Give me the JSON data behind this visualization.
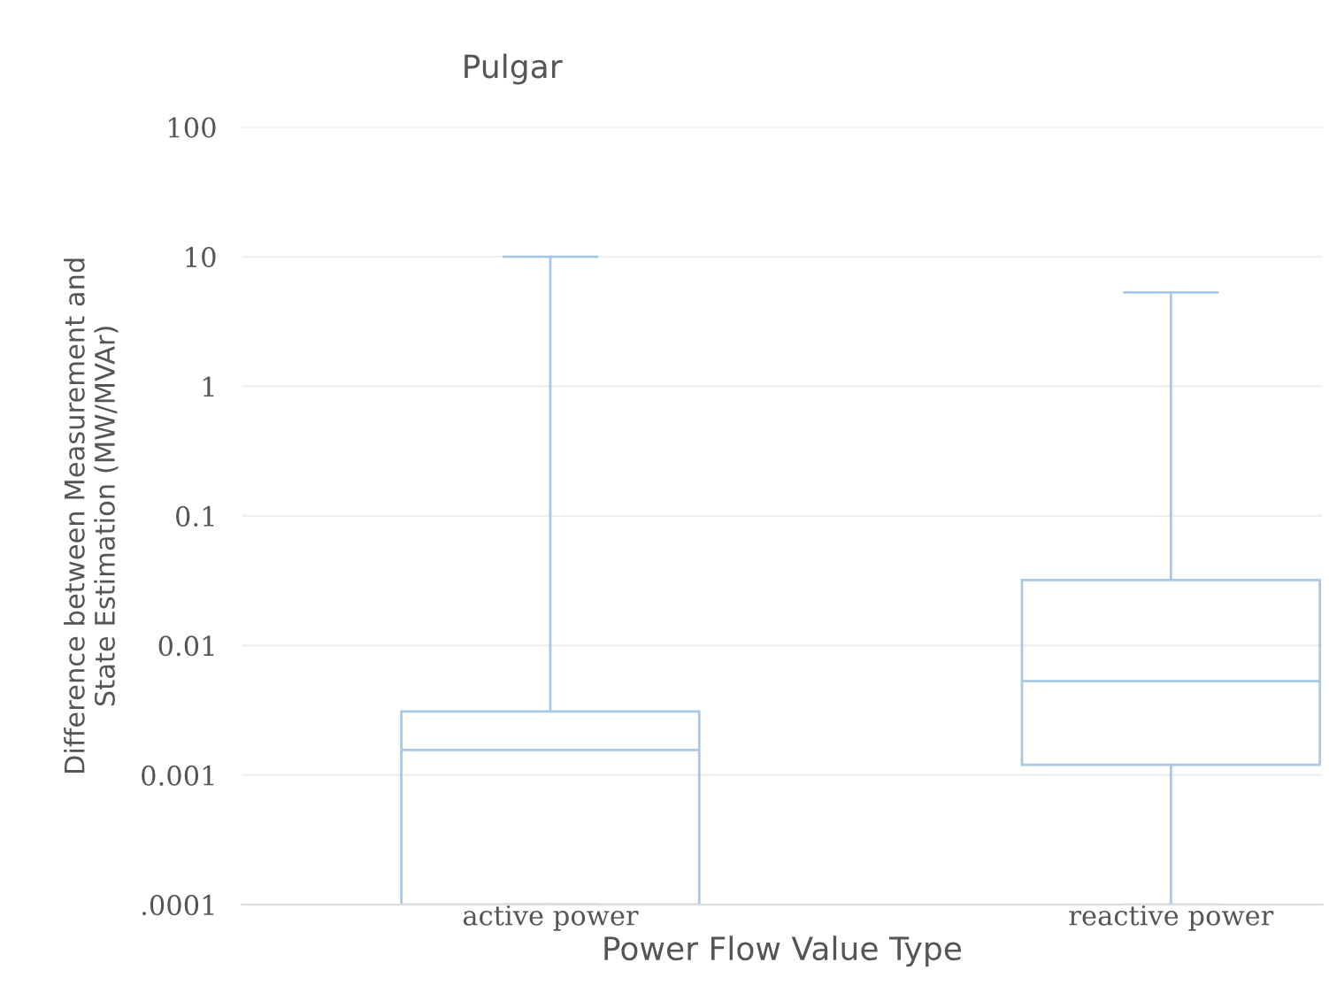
{
  "chart_data": {
    "type": "box",
    "title": "Pulgar",
    "xlabel": "Power Flow Value Type",
    "ylabel": "Difference between Measurement and\nState Estimation (MW/MVAr)",
    "categories": [
      "active power",
      "reactive power"
    ],
    "boxes": [
      {
        "low": 0.0001,
        "q1": 0.0001,
        "median": 0.00156,
        "q3": 0.0031,
        "high": 10
      },
      {
        "low": 0.0001,
        "q1": 0.0012,
        "median": 0.0053,
        "q3": 0.032,
        "high": 5.3
      }
    ],
    "color": "#a9c8e6",
    "log": true,
    "ylim": [
      0.0001,
      100
    ],
    "yticks": [
      {
        "value": 0.0001,
        "label": ".0001"
      },
      {
        "value": 0.001,
        "label": "0.001"
      },
      {
        "value": 0.01,
        "label": "0.01"
      },
      {
        "value": 0.1,
        "label": "0.1"
      },
      {
        "value": 1,
        "label": "1"
      },
      {
        "value": 10,
        "label": "10"
      },
      {
        "value": 100,
        "label": "100"
      }
    ],
    "grid": "y"
  }
}
